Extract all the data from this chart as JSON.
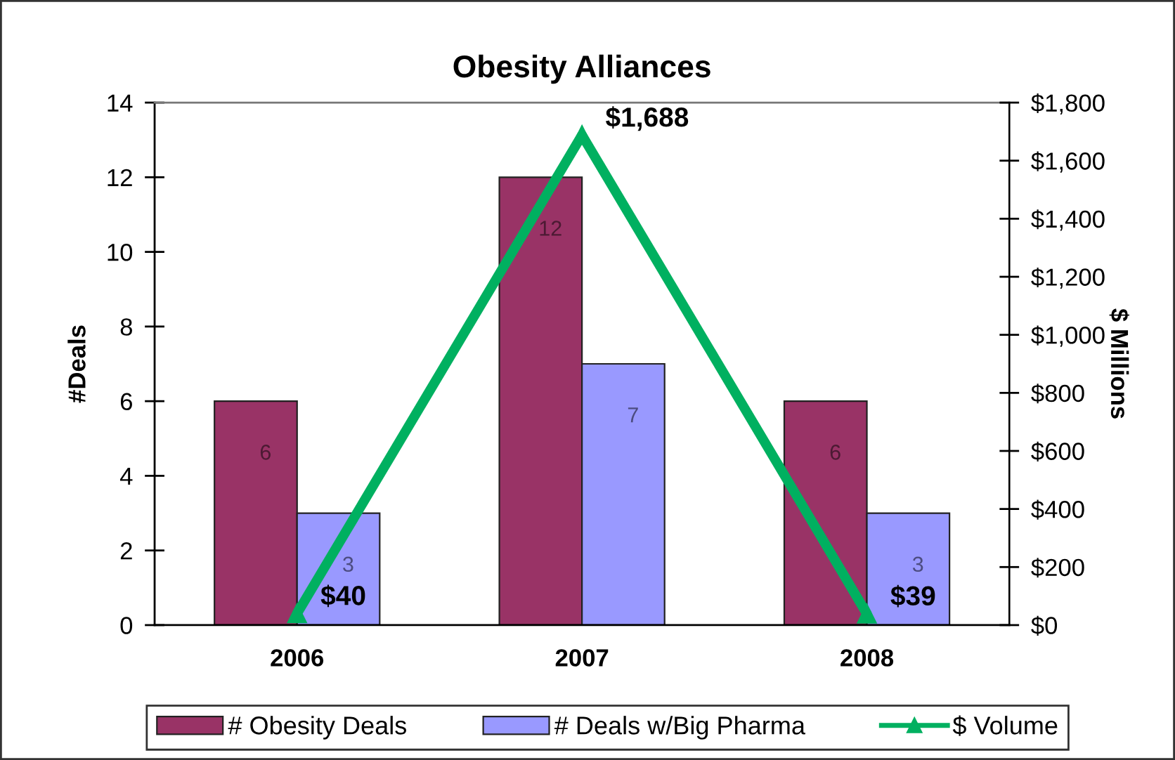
{
  "chart_data": {
    "type": "bar",
    "title": "Obesity Alliances",
    "categories": [
      "2006",
      "2007",
      "2008"
    ],
    "series": [
      {
        "name": "# Obesity Deals",
        "color": "#993366",
        "values": [
          6,
          12,
          6
        ],
        "value_labels": [
          "6",
          "12",
          "6"
        ]
      },
      {
        "name": "# Deals w/Big Pharma",
        "color": "#9999ff",
        "values": [
          3,
          7,
          3
        ],
        "value_labels": [
          "3",
          "7",
          "3"
        ]
      },
      {
        "name": "$ Volume",
        "type": "line",
        "axis": "y2",
        "color": "#00b060",
        "marker": "triangle",
        "line_style": "solid",
        "values": [
          40,
          1688,
          39
        ],
        "value_labels": [
          "$40",
          "$1,688",
          "$39"
        ]
      }
    ],
    "ylabel": "#Deals",
    "y2label": "$ Millions",
    "ylim": [
      0,
      14
    ],
    "yticks": [
      0,
      2,
      4,
      6,
      8,
      10,
      12,
      14
    ],
    "y2lim": [
      0,
      1800
    ],
    "y2ticks": [
      {
        "value": 0,
        "label": "$0"
      },
      {
        "value": 200,
        "label": "$200"
      },
      {
        "value": 400,
        "label": "$400"
      },
      {
        "value": 600,
        "label": "$600"
      },
      {
        "value": 800,
        "label": "$800"
      },
      {
        "value": 1000,
        "label": "$1,000"
      },
      {
        "value": 1200,
        "label": "$1,200"
      },
      {
        "value": 1400,
        "label": "$1,400"
      },
      {
        "value": 1600,
        "label": "$1,600"
      },
      {
        "value": 1800,
        "label": "$1,800"
      }
    ],
    "legend": "bottom",
    "grid": false
  }
}
